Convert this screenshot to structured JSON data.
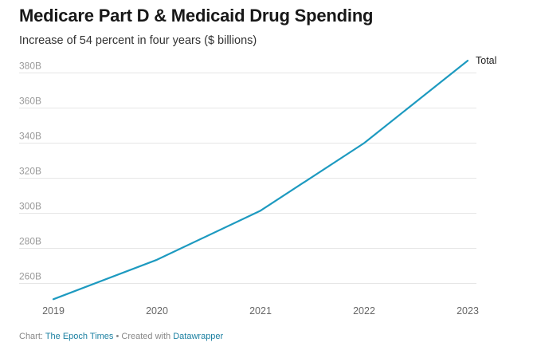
{
  "title": "Medicare Part D & Medicaid Drug Spending",
  "subtitle": "Increase of 54 percent in four years ($ billions)",
  "footer": {
    "prefix": "Chart:",
    "source": "The Epoch Times",
    "separator": "•",
    "created_with": "Created with",
    "tool": "Datawrapper"
  },
  "colors": {
    "line": "#1d9ac0",
    "grid": "#e6e6e6",
    "link": "#1d81a2"
  },
  "chart_data": {
    "type": "line",
    "title": "Medicare Part D & Medicaid Drug Spending",
    "subtitle": "Increase of 54 percent in four years ($ billions)",
    "xlabel": "",
    "ylabel": "",
    "x": [
      2019,
      2020,
      2021,
      2022,
      2023
    ],
    "x_tick_labels": [
      "2019",
      "2020",
      "2021",
      "2022",
      "2023"
    ],
    "series": [
      {
        "name": "Total",
        "values": [
          251,
          273.5,
          301.5,
          340,
          387
        ]
      }
    ],
    "y_ticks": [
      260,
      280,
      300,
      320,
      340,
      360,
      380
    ],
    "y_tick_labels": [
      "260B",
      "280B",
      "300B",
      "320B",
      "340B",
      "360B",
      "380B"
    ],
    "ylim": [
      250,
      390
    ],
    "grid": true,
    "legend": "inline-end-label"
  }
}
